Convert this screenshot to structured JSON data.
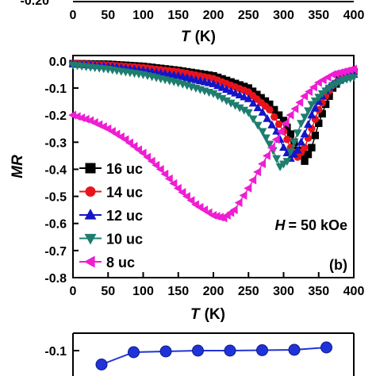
{
  "top_panel": {
    "ytick_visible": "-0.20",
    "xticks": [
      "0",
      "50",
      "100",
      "150",
      "200",
      "250",
      "300",
      "350",
      "400"
    ],
    "xlabel_var": "T",
    "xlabel_unit": "(K)"
  },
  "chart_data": [
    {
      "type": "scatter",
      "panel_label": "(b)",
      "xlabel_var": "T",
      "xlabel_unit": "(K)",
      "ylabel": "MR",
      "xlim": [
        0,
        400
      ],
      "ylim": [
        -0.8,
        0.02
      ],
      "xticks": [
        0,
        50,
        100,
        150,
        200,
        250,
        300,
        350,
        400
      ],
      "yticks": [
        0.0,
        -0.1,
        -0.2,
        -0.3,
        -0.4,
        -0.5,
        -0.6,
        -0.7,
        -0.8
      ],
      "ytick_labels": [
        "0.0",
        "-0.1",
        "-0.2",
        "-0.3",
        "-0.4",
        "-0.5",
        "-0.6",
        "-0.7",
        "-0.8"
      ],
      "annotation_var": "H",
      "annotation_value": "= 50 kOe",
      "legend_position": "left",
      "series": [
        {
          "name": "16 uc",
          "marker": "square",
          "color": "#000000",
          "x": [
            0,
            50,
            100,
            150,
            200,
            250,
            280,
            300,
            310,
            320,
            330,
            340,
            350,
            360,
            370,
            380,
            390,
            400
          ],
          "y": [
            -0.01,
            -0.012,
            -0.02,
            -0.035,
            -0.055,
            -0.1,
            -0.16,
            -0.22,
            -0.27,
            -0.33,
            -0.37,
            -0.32,
            -0.23,
            -0.16,
            -0.1,
            -0.07,
            -0.05,
            -0.04
          ]
        },
        {
          "name": "14 uc",
          "marker": "circle",
          "color": "#e8141c",
          "x": [
            0,
            50,
            100,
            150,
            200,
            250,
            280,
            300,
            310,
            320,
            330,
            340,
            350,
            360,
            370,
            380,
            390,
            400
          ],
          "y": [
            -0.01,
            -0.015,
            -0.025,
            -0.04,
            -0.065,
            -0.115,
            -0.18,
            -0.26,
            -0.32,
            -0.355,
            -0.32,
            -0.25,
            -0.18,
            -0.13,
            -0.09,
            -0.07,
            -0.055,
            -0.045
          ]
        },
        {
          "name": "12 uc",
          "marker": "triangle-up",
          "color": "#1515c8",
          "x": [
            0,
            50,
            100,
            150,
            200,
            250,
            270,
            290,
            300,
            310,
            320,
            330,
            340,
            350,
            360,
            370,
            380,
            390,
            400
          ],
          "y": [
            -0.012,
            -0.02,
            -0.035,
            -0.055,
            -0.085,
            -0.14,
            -0.19,
            -0.26,
            -0.32,
            -0.36,
            -0.33,
            -0.27,
            -0.2,
            -0.15,
            -0.11,
            -0.085,
            -0.07,
            -0.06,
            -0.05
          ]
        },
        {
          "name": "10 uc",
          "marker": "triangle-down",
          "color": "#1e7d6e",
          "x": [
            0,
            50,
            100,
            150,
            200,
            250,
            270,
            285,
            295,
            305,
            315,
            325,
            340,
            355,
            370,
            385,
            400
          ],
          "y": [
            -0.015,
            -0.03,
            -0.05,
            -0.08,
            -0.12,
            -0.19,
            -0.26,
            -0.33,
            -0.39,
            -0.37,
            -0.3,
            -0.23,
            -0.16,
            -0.12,
            -0.09,
            -0.07,
            -0.06
          ]
        },
        {
          "name": "8 uc",
          "marker": "triangle-left",
          "color": "#ee1ed2",
          "x": [
            0,
            25,
            50,
            75,
            100,
            125,
            150,
            175,
            200,
            215,
            230,
            250,
            270,
            290,
            310,
            330,
            350,
            370,
            385,
            400
          ],
          "y": [
            -0.2,
            -0.22,
            -0.25,
            -0.29,
            -0.34,
            -0.4,
            -0.47,
            -0.53,
            -0.57,
            -0.58,
            -0.55,
            -0.47,
            -0.38,
            -0.29,
            -0.2,
            -0.13,
            -0.08,
            -0.05,
            -0.04,
            -0.03
          ]
        }
      ]
    },
    {
      "type": "line",
      "ytick_labels": [
        "-0.1"
      ],
      "series": [
        {
          "name": "",
          "marker": "circle",
          "color": "#2033d8",
          "x": [
            1,
            2,
            3,
            4,
            5,
            6,
            7,
            8
          ],
          "y": [
            -0.135,
            -0.104,
            -0.102,
            -0.1,
            -0.1,
            -0.099,
            -0.098,
            -0.092
          ]
        }
      ]
    }
  ]
}
